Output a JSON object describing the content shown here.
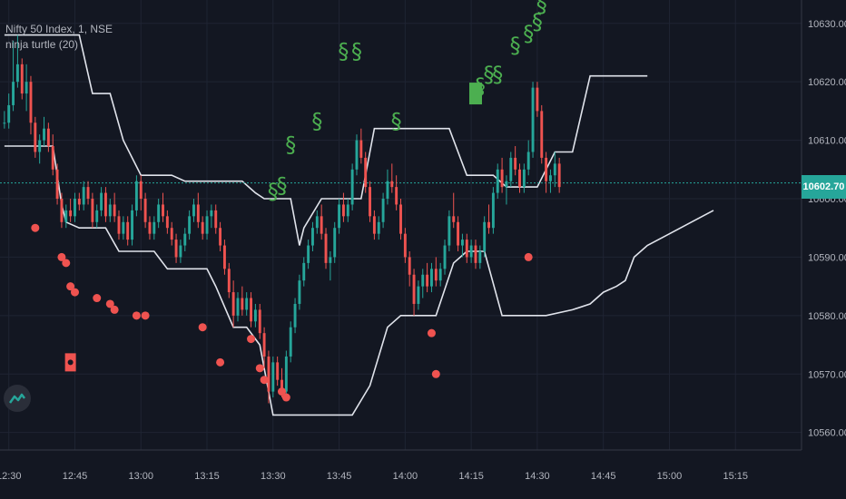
{
  "legend": {
    "symbol": "Nifty 50 Index, 1, NSE",
    "indicator": "ninja turtle (20)"
  },
  "last_price": "10602.70",
  "colors": {
    "up": "#26a69a",
    "down": "#ef5350",
    "signal": "#4caf50",
    "line": "#e0e3eb",
    "price_line": "#26a69a"
  },
  "chart_data": {
    "type": "line",
    "title": "",
    "y_ticks": [
      10560,
      10570,
      10580,
      10590,
      10600,
      10610,
      10620,
      10630
    ],
    "y_tick_labels": [
      "10560.00",
      "10570.00",
      "10580.00",
      "10590.00",
      "10600.00",
      "10610.00",
      "10620.00",
      "10630.00"
    ],
    "ylim": [
      10557,
      10634
    ],
    "x_tick_labels": [
      "12:30",
      "12:45",
      "13:00",
      "13:15",
      "13:30",
      "13:45",
      "14:00",
      "14:15",
      "14:30",
      "14:45",
      "15:00",
      "15:15"
    ],
    "x_tick_minutes": [
      0,
      15,
      30,
      45,
      60,
      75,
      90,
      105,
      120,
      135,
      150,
      165
    ],
    "xlim_minutes": [
      -2,
      180
    ],
    "last_price": 10602.7,
    "candles": [
      [
        -1,
        10613,
        10615,
        10612,
        10613
      ],
      [
        0,
        10613,
        10618,
        10612,
        10616
      ],
      [
        1,
        10616,
        10627,
        10615,
        10620
      ],
      [
        2,
        10620,
        10628,
        10619,
        10623
      ],
      [
        3,
        10623,
        10624,
        10617,
        10618
      ],
      [
        4,
        10618,
        10623,
        10615,
        10620
      ],
      [
        5,
        10620,
        10621,
        10611,
        10613
      ],
      [
        6,
        10613,
        10614,
        10607,
        10608
      ],
      [
        7,
        10608,
        10611,
        10606,
        10610
      ],
      [
        8,
        10610,
        10614,
        10609,
        10612
      ],
      [
        9,
        10612,
        10613,
        10608,
        10609
      ],
      [
        10,
        10609,
        10611,
        10604,
        10605
      ],
      [
        11,
        10605,
        10606,
        10599,
        10600
      ],
      [
        12,
        10600,
        10601,
        10595,
        10596
      ],
      [
        13,
        10596,
        10599,
        10595,
        10598
      ],
      [
        14,
        10598,
        10600,
        10596,
        10597
      ],
      [
        15,
        10597,
        10601,
        10596,
        10600
      ],
      [
        16,
        10600,
        10601,
        10598,
        10599
      ],
      [
        17,
        10599,
        10603,
        10598,
        10602
      ],
      [
        18,
        10602,
        10603,
        10599,
        10600
      ],
      [
        19,
        10600,
        10601,
        10595,
        10596
      ],
      [
        20,
        10596,
        10599,
        10595,
        10598
      ],
      [
        21,
        10598,
        10602,
        10597,
        10601
      ],
      [
        22,
        10601,
        10602,
        10596,
        10597
      ],
      [
        23,
        10597,
        10600,
        10596,
        10599
      ],
      [
        24,
        10599,
        10601,
        10596,
        10597
      ],
      [
        25,
        10597,
        10598,
        10593,
        10594
      ],
      [
        26,
        10594,
        10597,
        10593,
        10596
      ],
      [
        27,
        10596,
        10597,
        10592,
        10593
      ],
      [
        28,
        10593,
        10599,
        10592,
        10598
      ],
      [
        29,
        10598,
        10604,
        10597,
        10603
      ],
      [
        30,
        10603,
        10604,
        10598,
        10600
      ],
      [
        31,
        10600,
        10601,
        10595,
        10596
      ],
      [
        32,
        10596,
        10597,
        10593,
        10594
      ],
      [
        33,
        10594,
        10597,
        10593,
        10596
      ],
      [
        34,
        10596,
        10600,
        10595,
        10599
      ],
      [
        35,
        10599,
        10601,
        10596,
        10597
      ],
      [
        36,
        10597,
        10598,
        10594,
        10595
      ],
      [
        37,
        10595,
        10596,
        10592,
        10593
      ],
      [
        38,
        10593,
        10594,
        10589,
        10590
      ],
      [
        39,
        10590,
        10593,
        10589,
        10592
      ],
      [
        40,
        10592,
        10595,
        10591,
        10594
      ],
      [
        41,
        10594,
        10598,
        10593,
        10597
      ],
      [
        42,
        10597,
        10600,
        10596,
        10599
      ],
      [
        43,
        10599,
        10601,
        10595,
        10596
      ],
      [
        44,
        10596,
        10597,
        10593,
        10594
      ],
      [
        45,
        10594,
        10598,
        10593,
        10597
      ],
      [
        46,
        10597,
        10599,
        10595,
        10598
      ],
      [
        47,
        10598,
        10599,
        10594,
        10595
      ],
      [
        48,
        10595,
        10596,
        10591,
        10592
      ],
      [
        49,
        10592,
        10593,
        10587,
        10588
      ],
      [
        50,
        10588,
        10589,
        10583,
        10584
      ],
      [
        51,
        10584,
        10586,
        10578,
        10580
      ],
      [
        52,
        10580,
        10584,
        10579,
        10583
      ],
      [
        53,
        10583,
        10585,
        10580,
        10581
      ],
      [
        54,
        10581,
        10584,
        10580,
        10583
      ],
      [
        55,
        10583,
        10584,
        10578,
        10579
      ],
      [
        56,
        10579,
        10582,
        10578,
        10581
      ],
      [
        57,
        10581,
        10582,
        10576,
        10577
      ],
      [
        58,
        10577,
        10578,
        10571,
        10573
      ],
      [
        59,
        10573,
        10574,
        10565,
        10567
      ],
      [
        60,
        10567,
        10573,
        10566,
        10572
      ],
      [
        61,
        10572,
        10573,
        10568,
        10569
      ],
      [
        62,
        10569,
        10571,
        10566,
        10567
      ],
      [
        63,
        10567,
        10574,
        10566,
        10573
      ],
      [
        64,
        10573,
        10579,
        10572,
        10578
      ],
      [
        65,
        10578,
        10583,
        10577,
        10582
      ],
      [
        66,
        10582,
        10587,
        10581,
        10586
      ],
      [
        67,
        10586,
        10590,
        10585,
        10589
      ],
      [
        68,
        10589,
        10593,
        10588,
        10592
      ],
      [
        69,
        10592,
        10596,
        10591,
        10595
      ],
      [
        70,
        10595,
        10598,
        10594,
        10597
      ],
      [
        71,
        10597,
        10599,
        10593,
        10594
      ],
      [
        72,
        10594,
        10595,
        10588,
        10589
      ],
      [
        73,
        10589,
        10591,
        10586,
        10590
      ],
      [
        74,
        10590,
        10596,
        10589,
        10595
      ],
      [
        75,
        10595,
        10600,
        10594,
        10599
      ],
      [
        76,
        10599,
        10601,
        10596,
        10597
      ],
      [
        77,
        10597,
        10600,
        10596,
        10599
      ],
      [
        78,
        10599,
        10606,
        10598,
        10605
      ],
      [
        79,
        10605,
        10611,
        10604,
        10610
      ],
      [
        80,
        10610,
        10612,
        10606,
        10607
      ],
      [
        81,
        10607,
        10608,
        10601,
        10602
      ],
      [
        82,
        10602,
        10603,
        10596,
        10597
      ],
      [
        83,
        10597,
        10598,
        10593,
        10594
      ],
      [
        84,
        10594,
        10597,
        10593,
        10596
      ],
      [
        85,
        10596,
        10601,
        10595,
        10600
      ],
      [
        86,
        10600,
        10605,
        10599,
        10603
      ],
      [
        87,
        10603,
        10606,
        10601,
        10602
      ],
      [
        88,
        10602,
        10604,
        10598,
        10599
      ],
      [
        89,
        10599,
        10600,
        10593,
        10594
      ],
      [
        90,
        10594,
        10595,
        10589,
        10590
      ],
      [
        91,
        10590,
        10591,
        10585,
        10587
      ],
      [
        92,
        10587,
        10588,
        10580,
        10582
      ],
      [
        93,
        10582,
        10586,
        10581,
        10585
      ],
      [
        94,
        10585,
        10588,
        10583,
        10587
      ],
      [
        95,
        10587,
        10589,
        10584,
        10585
      ],
      [
        96,
        10585,
        10589,
        10584,
        10588
      ],
      [
        97,
        10588,
        10590,
        10585,
        10586
      ],
      [
        98,
        10586,
        10589,
        10585,
        10588
      ],
      [
        99,
        10588,
        10593,
        10587,
        10592
      ],
      [
        100,
        10592,
        10598,
        10591,
        10597
      ],
      [
        101,
        10597,
        10601,
        10595,
        10596
      ],
      [
        102,
        10596,
        10597,
        10591,
        10592
      ],
      [
        103,
        10592,
        10594,
        10590,
        10593
      ],
      [
        104,
        10593,
        10594,
        10589,
        10590
      ],
      [
        105,
        10590,
        10593,
        10589,
        10592
      ],
      [
        106,
        10592,
        10593,
        10588,
        10589
      ],
      [
        107,
        10589,
        10592,
        10588,
        10591
      ],
      [
        108,
        10591,
        10597,
        10590,
        10596
      ],
      [
        109,
        10596,
        10599,
        10594,
        10595
      ],
      [
        110,
        10595,
        10602,
        10594,
        10601
      ],
      [
        111,
        10601,
        10606,
        10600,
        10605
      ],
      [
        112,
        10605,
        10607,
        10601,
        10602
      ],
      [
        113,
        10602,
        10604,
        10599,
        10603
      ],
      [
        114,
        10603,
        10608,
        10602,
        10607
      ],
      [
        115,
        10607,
        10609,
        10604,
        10605
      ],
      [
        116,
        10605,
        10606,
        10601,
        10602
      ],
      [
        117,
        10602,
        10606,
        10601,
        10605
      ],
      [
        118,
        10605,
        10610,
        10604,
        10608
      ],
      [
        119,
        10608,
        10620,
        10607,
        10619
      ],
      [
        120,
        10619,
        10620,
        10614,
        10615
      ],
      [
        121,
        10615,
        10616,
        10606,
        10607
      ],
      [
        122,
        10607,
        10608,
        10601,
        10603
      ],
      [
        123,
        10603,
        10605,
        10601,
        10604
      ],
      [
        124,
        10604,
        10608,
        10602,
        10606
      ],
      [
        125,
        10606,
        10607,
        10601,
        10602
      ]
    ],
    "upper_band": [
      [
        -1,
        10628
      ],
      [
        16,
        10628
      ],
      [
        19,
        10618
      ],
      [
        23,
        10618
      ],
      [
        26,
        10610
      ],
      [
        30,
        10604
      ],
      [
        37,
        10604
      ],
      [
        40,
        10603
      ],
      [
        53,
        10603
      ],
      [
        56,
        10601
      ],
      [
        58,
        10600
      ],
      [
        64,
        10600
      ],
      [
        66,
        10592
      ],
      [
        67,
        10595
      ],
      [
        71,
        10600
      ],
      [
        80,
        10600
      ],
      [
        83,
        10612
      ],
      [
        100,
        10612
      ],
      [
        104,
        10604
      ],
      [
        110,
        10604
      ],
      [
        113,
        10602
      ],
      [
        120,
        10602
      ],
      [
        124,
        10608
      ],
      [
        128,
        10608
      ],
      [
        132,
        10621
      ],
      [
        145,
        10621
      ]
    ],
    "lower_band": [
      [
        -1,
        10609
      ],
      [
        10,
        10609
      ],
      [
        12,
        10599
      ],
      [
        13,
        10596
      ],
      [
        16,
        10595
      ],
      [
        22,
        10595
      ],
      [
        25,
        10591
      ],
      [
        33,
        10591
      ],
      [
        36,
        10588
      ],
      [
        45,
        10588
      ],
      [
        47,
        10585
      ],
      [
        51,
        10578
      ],
      [
        54,
        10578
      ],
      [
        57,
        10575
      ],
      [
        60,
        10563
      ],
      [
        78,
        10563
      ],
      [
        82,
        10568
      ],
      [
        86,
        10578
      ],
      [
        89,
        10580
      ],
      [
        97,
        10580
      ],
      [
        101,
        10589
      ],
      [
        104,
        10591
      ],
      [
        108,
        10591
      ],
      [
        112,
        10580
      ],
      [
        122,
        10580
      ],
      [
        128,
        10581
      ],
      [
        132,
        10582
      ],
      [
        135,
        10584
      ],
      [
        138,
        10585
      ],
      [
        140,
        10586
      ],
      [
        142,
        10590
      ],
      [
        145,
        10592
      ],
      [
        150,
        10594
      ],
      [
        155,
        10596
      ],
      [
        160,
        10598
      ]
    ],
    "sell_dots": [
      [
        6,
        10595
      ],
      [
        12,
        10590
      ],
      [
        13,
        10589
      ],
      [
        14,
        10585
      ],
      [
        15,
        10584
      ],
      [
        20,
        10583
      ],
      [
        23,
        10582
      ],
      [
        24,
        10581
      ],
      [
        29,
        10580
      ],
      [
        31,
        10580
      ],
      [
        44,
        10578
      ],
      [
        48,
        10572
      ],
      [
        55,
        10576
      ],
      [
        57,
        10571
      ],
      [
        58,
        10569
      ],
      [
        62,
        10567
      ],
      [
        63,
        10566
      ],
      [
        96,
        10577
      ],
      [
        97,
        10570
      ],
      [
        118,
        10590
      ]
    ],
    "sell_box": [
      14,
      10572
    ],
    "buy_signals": [
      [
        60,
        10600
      ],
      [
        62,
        10601
      ],
      [
        64,
        10608
      ],
      [
        70,
        10612
      ],
      [
        76,
        10624
      ],
      [
        79,
        10624
      ],
      [
        88,
        10612
      ],
      [
        107,
        10618
      ],
      [
        109,
        10620
      ],
      [
        111,
        10620
      ],
      [
        115,
        10625
      ],
      [
        118,
        10627
      ],
      [
        120,
        10629
      ],
      [
        121,
        10632
      ]
    ],
    "buy_box": [
      106,
      10618
    ]
  }
}
